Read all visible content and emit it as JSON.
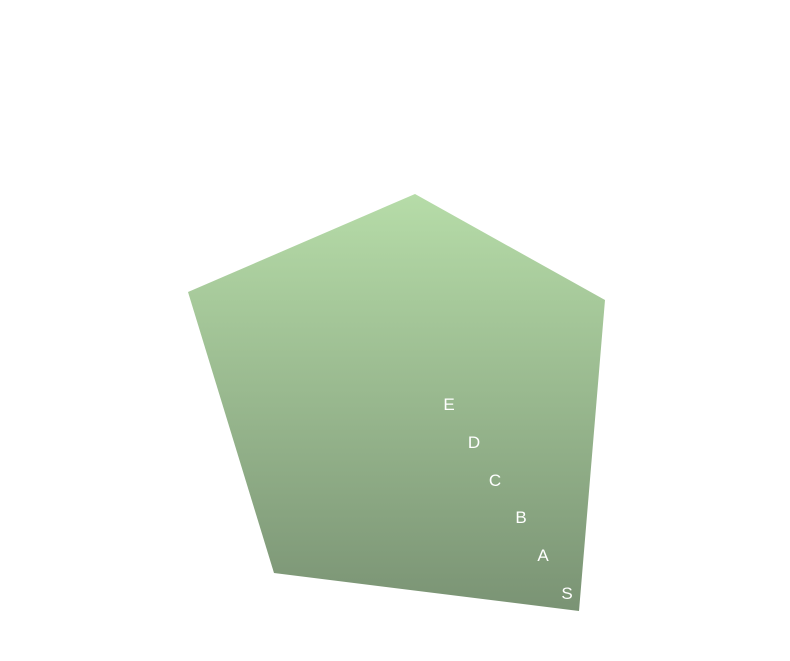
{
  "diagram": {
    "shape": "pentagon",
    "fill_gradient": {
      "top": "#b6dca8",
      "bottom": "#7a9374"
    },
    "label_color": "#ffffff",
    "labels": [
      "E",
      "D",
      "C",
      "B",
      "A",
      "S"
    ]
  }
}
